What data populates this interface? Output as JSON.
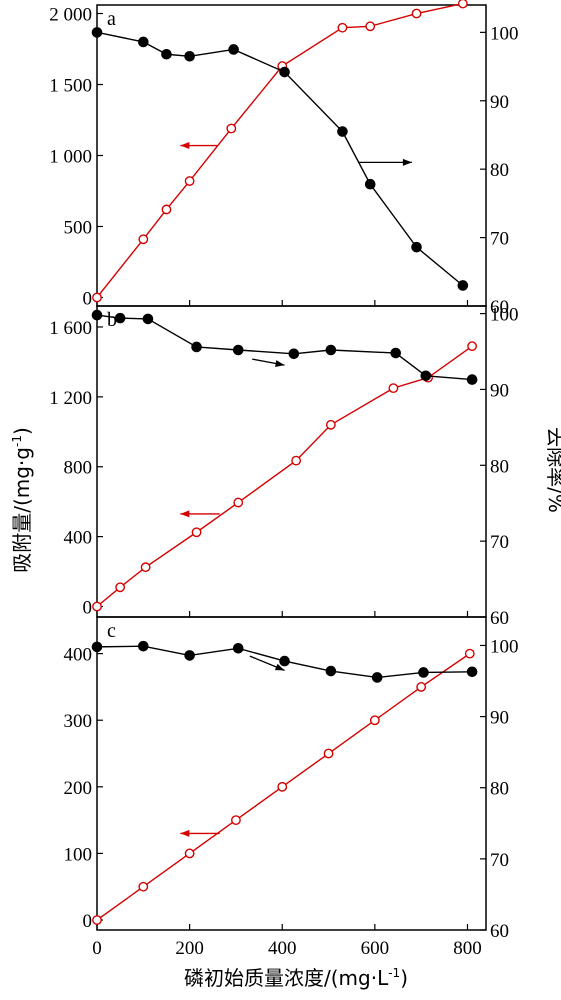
{
  "colors": {
    "adsorption": "#d40000",
    "removal": "#000000",
    "axis": "#000000"
  },
  "labels": {
    "ylabel_left": "吸附量/(mg·g",
    "ylabel_left_sup": "-1",
    "ylabel_left_tail": ")",
    "ylabel_right": "去除率/%",
    "xlabel": "磷初始质量浓度/(mg·L",
    "xlabel_sup": "-1",
    "xlabel_tail": ")"
  },
  "x_axis": {
    "range": [
      0,
      840
    ],
    "ticks": [
      0,
      200,
      400,
      600,
      800
    ],
    "tick_labels": [
      "0",
      "200",
      "400",
      "600",
      "800"
    ]
  },
  "chart_data": [
    {
      "type": "line",
      "panel_label": "a",
      "left_axis": {
        "range": [
          -60,
          2060
        ],
        "ticks": [
          0,
          500,
          1000,
          1500,
          2000
        ],
        "tick_labels": [
          "0",
          "500",
          "1 000",
          "1 500",
          "2 000"
        ]
      },
      "right_axis": {
        "range": [
          60,
          104
        ],
        "ticks": [
          60,
          70,
          80,
          90,
          100
        ],
        "tick_labels": [
          "60",
          "70",
          "80",
          "90",
          "100"
        ]
      },
      "series": [
        {
          "axis": "left",
          "marker": "open-circle",
          "x": [
            0,
            100,
            150,
            200,
            290,
            400,
            530,
            590,
            690,
            790
          ],
          "y": [
            0,
            410,
            620,
            820,
            1190,
            1630,
            1900,
            1910,
            2000,
            2070
          ]
        },
        {
          "axis": "right",
          "marker": "filled-circle",
          "x": [
            0,
            100,
            150,
            200,
            295,
            405,
            530,
            590,
            690,
            790
          ],
          "y": [
            100.0,
            98.6,
            96.8,
            96.5,
            97.5,
            94.2,
            85.5,
            77.8,
            68.6,
            63.0
          ]
        }
      ],
      "arrows": [
        {
          "points_to": "left",
          "x_from": 260,
          "x_to": 180,
          "y": 1070,
          "axis": "left"
        },
        {
          "points_to": "right",
          "x_from": 565,
          "x_to": 680,
          "y": 81,
          "axis": "right"
        }
      ]
    },
    {
      "type": "line",
      "panel_label": "b",
      "left_axis": {
        "range": [
          -60,
          1720
        ],
        "ticks": [
          0,
          400,
          800,
          1200,
          1600
        ],
        "tick_labels": [
          "0",
          "400",
          "800",
          "1 200",
          "1 600"
        ]
      },
      "right_axis": {
        "range": [
          60,
          101
        ],
        "ticks": [
          60,
          70,
          80,
          90,
          100
        ],
        "tick_labels": [
          "60",
          "70",
          "80",
          "90",
          "100"
        ]
      },
      "series": [
        {
          "axis": "left",
          "marker": "open-circle",
          "x": [
            0,
            50,
            105,
            215,
            305,
            430,
            505,
            640,
            715,
            810
          ],
          "y": [
            0,
            110,
            225,
            425,
            595,
            835,
            1040,
            1250,
            1310,
            1490
          ]
        },
        {
          "axis": "right",
          "marker": "filled-circle",
          "x": [
            0,
            50,
            110,
            215,
            305,
            425,
            505,
            645,
            710,
            810
          ],
          "y": [
            99.8,
            99.4,
            99.3,
            95.6,
            95.2,
            94.7,
            95.2,
            94.8,
            91.8,
            91.3
          ]
        }
      ],
      "arrows": [
        {
          "points_to": "left",
          "x_from": 265,
          "x_to": 180,
          "y": 530,
          "axis": "left"
        },
        {
          "points_to": "right",
          "x_from": 335,
          "x_to": 405,
          "y": 94.0,
          "axis": "right",
          "diagonal": true,
          "y_to": 93.2
        }
      ]
    },
    {
      "type": "line",
      "panel_label": "c",
      "left_axis": {
        "range": [
          -15,
          455
        ],
        "ticks": [
          0,
          100,
          200,
          300,
          400
        ],
        "tick_labels": [
          "0",
          "100",
          "200",
          "300",
          "400"
        ]
      },
      "right_axis": {
        "range": [
          60,
          104
        ],
        "ticks": [
          60,
          70,
          80,
          90,
          100
        ],
        "tick_labels": [
          "60",
          "70",
          "80",
          "90",
          "100"
        ]
      },
      "series": [
        {
          "axis": "left",
          "marker": "open-circle",
          "x": [
            0,
            100,
            200,
            300,
            400,
            500,
            600,
            700,
            805
          ],
          "y": [
            0,
            50,
            100,
            150,
            200,
            250,
            300,
            350,
            400
          ]
        },
        {
          "axis": "right",
          "marker": "filled-circle",
          "x": [
            0,
            100,
            200,
            305,
            405,
            505,
            605,
            705,
            810
          ],
          "y": [
            99.8,
            99.9,
            98.6,
            99.6,
            97.8,
            96.4,
            95.5,
            96.2,
            96.3
          ]
        }
      ],
      "arrows": [
        {
          "points_to": "left",
          "x_from": 265,
          "x_to": 180,
          "y": 130,
          "axis": "left"
        },
        {
          "points_to": "right",
          "x_from": 330,
          "x_to": 405,
          "y": 98.5,
          "axis": "right",
          "diagonal": true,
          "y_to": 96.5
        }
      ]
    }
  ]
}
